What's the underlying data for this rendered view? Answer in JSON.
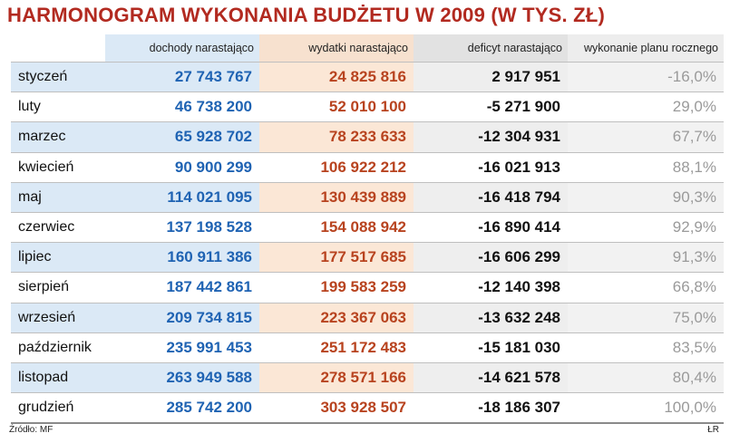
{
  "title": "HARMONOGRAM WYKONANIA BUDŻETU W 2009 (W TYS. ZŁ)",
  "columns": [
    "",
    "dochody narastająco",
    "wydatki narastająco",
    "deficyt narastająco",
    "wykonanie planu rocznego"
  ],
  "rows": [
    [
      "styczeń",
      "27 743 767",
      "24 825 816",
      "2 917 951",
      "-16,0%"
    ],
    [
      "luty",
      "46 738 200",
      "52 010 100",
      "-5 271 900",
      "29,0%"
    ],
    [
      "marzec",
      "65 928 702",
      "78 233 633",
      "-12 304 931",
      "67,7%"
    ],
    [
      "kwiecień",
      "90 900 299",
      "106 922 212",
      "-16 021 913",
      "88,1%"
    ],
    [
      "maj",
      "114 021 095",
      "130 439 889",
      "-16 418 794",
      "90,3%"
    ],
    [
      "czerwiec",
      "137 198 528",
      "154 088 942",
      "-16 890 414",
      "92,9%"
    ],
    [
      "lipiec",
      "160 911 386",
      "177 517 685",
      "-16 606 299",
      "91,3%"
    ],
    [
      "sierpień",
      "187 442 861",
      "199 583 259",
      "-12 140 398",
      "66,8%"
    ],
    [
      "wrzesień",
      "209 734 815",
      "223 367 063",
      "-13 632 248",
      "75,0%"
    ],
    [
      "październik",
      "235 991 453",
      "251 172 483",
      "-15 181 030",
      "83,5%"
    ],
    [
      "listopad",
      "263 949 588",
      "278 571 166",
      "-14 621 578",
      "80,4%"
    ],
    [
      "grudzień",
      "285 742 200",
      "303 928 507",
      "-18 186 307",
      "100,0%"
    ]
  ],
  "source": "Źródło: MF",
  "credit": "ŁR",
  "colors": {
    "title": "#b22a20",
    "revenue": "#1f63b3",
    "expenses": "#b8431f",
    "deficit": "#111111",
    "plan": "#9a9a9a"
  },
  "chart_data": {
    "type": "table",
    "title": "HARMONOGRAM WYKONANIA BUDŻETU W 2009 (W TYS. ZŁ)",
    "categories": [
      "styczeń",
      "luty",
      "marzec",
      "kwiecień",
      "maj",
      "czerwiec",
      "lipiec",
      "sierpień",
      "wrzesień",
      "październik",
      "listopad",
      "grudzień"
    ],
    "series": [
      {
        "name": "dochody narastająco",
        "values": [
          27743767,
          46738200,
          65928702,
          90900299,
          114021095,
          137198528,
          160911386,
          187442861,
          209734815,
          235991453,
          263949588,
          285742200
        ]
      },
      {
        "name": "wydatki narastająco",
        "values": [
          24825816,
          52010100,
          78233633,
          106922212,
          130439889,
          154088942,
          177517685,
          199583259,
          223367063,
          251172483,
          278571166,
          303928507
        ]
      },
      {
        "name": "deficyt narastająco",
        "values": [
          2917951,
          -5271900,
          -12304931,
          -16021913,
          -16418794,
          -16890414,
          -16606299,
          -12140398,
          -13632248,
          -15181030,
          -14621578,
          -18186307
        ]
      },
      {
        "name": "wykonanie planu rocznego",
        "values": [
          -16.0,
          29.0,
          67.7,
          88.1,
          90.3,
          92.9,
          91.3,
          66.8,
          75.0,
          83.5,
          80.4,
          100.0
        ]
      }
    ]
  }
}
